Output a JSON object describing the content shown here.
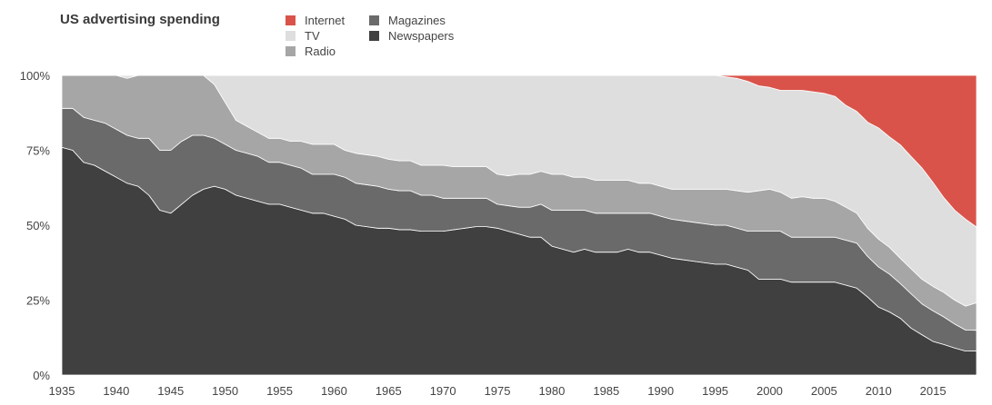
{
  "chart_data": {
    "type": "area",
    "stacked": true,
    "normalized": true,
    "title": "US advertising spending",
    "xlabel": "",
    "ylabel": "",
    "legend_position": "top",
    "xlim": [
      1935,
      2019
    ],
    "ylim": [
      0,
      100
    ],
    "x_ticks": [
      1935,
      1940,
      1945,
      1950,
      1955,
      1960,
      1965,
      1970,
      1975,
      1980,
      1985,
      1990,
      1995,
      2000,
      2005,
      2010,
      2015
    ],
    "y_ticks": [
      0,
      25,
      50,
      75,
      100
    ],
    "y_tick_labels": [
      "0%",
      "25%",
      "50%",
      "75%",
      "100%"
    ],
    "legend": [
      {
        "name": "Internet",
        "color": "#d9534a"
      },
      {
        "name": "TV",
        "color": "#dedede"
      },
      {
        "name": "Radio",
        "color": "#a6a6a6"
      },
      {
        "name": "Magazines",
        "color": "#6a6a6a"
      },
      {
        "name": "Newspapers",
        "color": "#404040"
      }
    ],
    "x": [
      1935,
      1936,
      1937,
      1938,
      1939,
      1940,
      1941,
      1942,
      1943,
      1944,
      1945,
      1946,
      1947,
      1948,
      1949,
      1950,
      1951,
      1952,
      1953,
      1954,
      1955,
      1956,
      1957,
      1958,
      1959,
      1960,
      1961,
      1962,
      1963,
      1964,
      1965,
      1966,
      1967,
      1968,
      1969,
      1970,
      1971,
      1972,
      1973,
      1974,
      1975,
      1976,
      1977,
      1978,
      1979,
      1980,
      1981,
      1982,
      1983,
      1984,
      1985,
      1986,
      1987,
      1988,
      1989,
      1990,
      1991,
      1992,
      1993,
      1994,
      1995,
      1996,
      1997,
      1998,
      1999,
      2000,
      2001,
      2002,
      2003,
      2004,
      2005,
      2006,
      2007,
      2008,
      2009,
      2010,
      2011,
      2012,
      2013,
      2014,
      2015,
      2016,
      2017,
      2018,
      2019
    ],
    "series": [
      {
        "name": "Newspapers",
        "color": "#404040",
        "values": [
          76,
          75,
          71,
          70,
          68,
          66,
          64,
          63,
          60,
          55,
          54,
          57,
          60,
          62,
          63,
          62,
          60,
          59,
          58,
          57,
          57,
          56,
          55,
          54,
          54,
          53,
          52,
          50,
          49.5,
          49,
          49,
          48.5,
          48.5,
          48,
          48,
          48,
          48.5,
          49,
          49.5,
          49.5,
          49,
          48,
          47,
          46,
          46,
          43,
          42,
          41,
          42,
          41,
          41,
          41,
          42,
          41,
          41,
          40,
          39,
          38.5,
          38,
          37.5,
          37,
          37,
          36,
          35,
          32,
          32,
          32,
          31,
          31,
          31,
          31,
          31,
          30,
          29,
          25,
          22,
          20,
          18,
          15,
          13,
          11,
          10,
          9,
          8,
          7
        ]
      },
      {
        "name": "Magazines",
        "color": "#6a6a6a",
        "values": [
          13,
          14,
          15,
          15,
          16,
          16,
          16,
          16,
          19,
          20,
          21,
          21,
          20,
          18,
          16,
          15,
          15,
          15,
          15,
          14,
          14,
          14,
          14,
          13,
          13,
          14,
          14,
          14,
          14,
          14,
          13,
          13,
          13,
          12,
          12,
          11,
          10.5,
          10,
          9.5,
          9.5,
          8,
          8.5,
          9,
          10,
          11,
          12,
          13,
          14,
          13,
          13,
          13,
          13,
          12,
          13,
          13,
          13,
          13,
          13,
          13,
          13,
          13,
          13,
          13,
          13,
          16,
          16,
          16,
          15,
          15,
          15,
          15,
          15,
          15,
          15,
          13,
          13,
          12,
          11,
          11,
          10,
          10,
          9,
          8,
          7,
          6
        ]
      },
      {
        "name": "Radio",
        "color": "#a6a6a6",
        "values": [
          11,
          11,
          14,
          15,
          16,
          18,
          19,
          21,
          21,
          25,
          25,
          22,
          20,
          20,
          18,
          14,
          10,
          9,
          8,
          8,
          8,
          8,
          9,
          10,
          10,
          10,
          9,
          10,
          10,
          10,
          10,
          10,
          10,
          10,
          10,
          11,
          10.5,
          10.5,
          10.5,
          10.5,
          10,
          10,
          11,
          11,
          11,
          12,
          12,
          11,
          11,
          11,
          11,
          11,
          11,
          10,
          10,
          10,
          10,
          10.5,
          11,
          11.5,
          12,
          12,
          12.5,
          13,
          13.5,
          14,
          13,
          13,
          13.5,
          13,
          13,
          12,
          11,
          10,
          9,
          9,
          8.5,
          8,
          8,
          8,
          8,
          8,
          8,
          8,
          8
        ]
      },
      {
        "name": "TV",
        "color": "#dedede",
        "values": [
          0,
          0,
          0,
          0,
          0,
          0,
          1,
          0,
          0,
          0,
          0,
          0,
          0,
          0,
          3,
          9,
          15,
          17,
          19,
          21,
          21,
          22,
          22,
          23,
          23,
          23,
          25,
          26,
          26.5,
          27,
          28,
          28.5,
          28.5,
          30,
          30,
          30,
          30.5,
          30.5,
          30.5,
          30.5,
          33,
          33.5,
          33,
          33,
          32,
          33,
          33,
          34,
          34,
          35,
          35,
          35,
          35,
          36,
          36,
          37,
          38,
          38,
          38,
          38,
          38,
          37.5,
          37.5,
          37,
          35,
          34,
          34,
          36,
          35.5,
          35.5,
          35,
          35,
          34,
          34,
          34,
          36,
          35,
          36,
          36,
          36,
          34,
          31,
          30,
          29,
          22
        ]
      },
      {
        "name": "Internet",
        "color": "#d9534a",
        "values": [
          0,
          0,
          0,
          0,
          0,
          0,
          0,
          0,
          0,
          0,
          0,
          0,
          0,
          0,
          0,
          0,
          0,
          0,
          0,
          0,
          0,
          0,
          0,
          0,
          0,
          0,
          0,
          0,
          0,
          0,
          0,
          0,
          0,
          0,
          0,
          0,
          0,
          0,
          0,
          0,
          0,
          0,
          0,
          0,
          0,
          0,
          0,
          0,
          0,
          0,
          0,
          0,
          0,
          0,
          0,
          0,
          0,
          0,
          0,
          0,
          0,
          0.5,
          1,
          2,
          3.5,
          4,
          5,
          5,
          5,
          5.5,
          6,
          7,
          10,
          12,
          15,
          17,
          19.5,
          22,
          26,
          30,
          35,
          40,
          45,
          48,
          44
        ]
      }
    ]
  }
}
